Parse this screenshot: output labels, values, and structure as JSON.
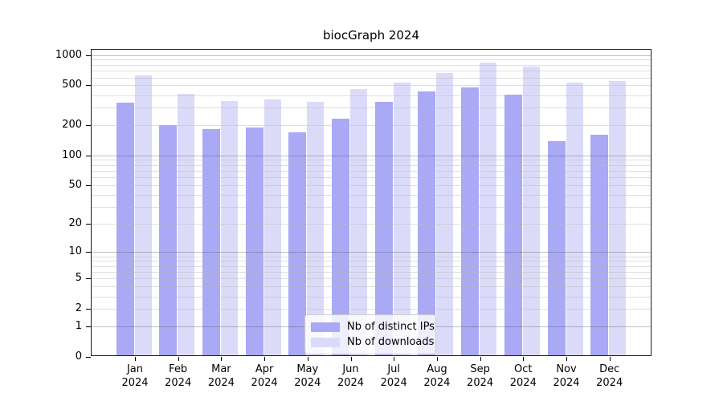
{
  "title": "biocGraph 2024",
  "chart_data": {
    "type": "bar",
    "title": "biocGraph 2024",
    "categories": [
      "Jan",
      "Feb",
      "Mar",
      "Apr",
      "May",
      "Jun",
      "Jul",
      "Aug",
      "Sep",
      "Oct",
      "Nov",
      "Dec"
    ],
    "category_sublabel": "2024",
    "series": [
      {
        "name": "Nb of distinct IPs",
        "color": "#a9a9f5",
        "values": [
          330,
          197,
          180,
          187,
          168,
          228,
          335,
          430,
          472,
          395,
          136,
          157
        ]
      },
      {
        "name": "Nb of downloads",
        "color": "#dbdbf9",
        "values": [
          615,
          405,
          340,
          358,
          338,
          452,
          525,
          650,
          830,
          750,
          520,
          540
        ]
      }
    ],
    "y_scale": "log10(value+1)",
    "ylim": [
      0,
      1132
    ],
    "y_ticks": [
      1000,
      500,
      200,
      100,
      50,
      20,
      10,
      5,
      2,
      1,
      0
    ],
    "grid": {
      "show": true,
      "major_lines": [
        1,
        10,
        100,
        1000
      ],
      "minor_lines": [
        2,
        3,
        4,
        5,
        6,
        7,
        8,
        9,
        20,
        30,
        40,
        50,
        60,
        70,
        80,
        90,
        200,
        300,
        400,
        500,
        600,
        700,
        800,
        900
      ]
    },
    "legend": {
      "position": "lower-center-inside",
      "entries": [
        "Nb of distinct IPs",
        "Nb of downloads"
      ]
    },
    "colors": {
      "distinct_ips": "#a9a9f5",
      "downloads": "#dbdbf9",
      "grid_major": "#b3b3b3",
      "grid_minor": "#e3e3e3",
      "axis": "#1a1a1a",
      "background": "#ffffff"
    }
  }
}
